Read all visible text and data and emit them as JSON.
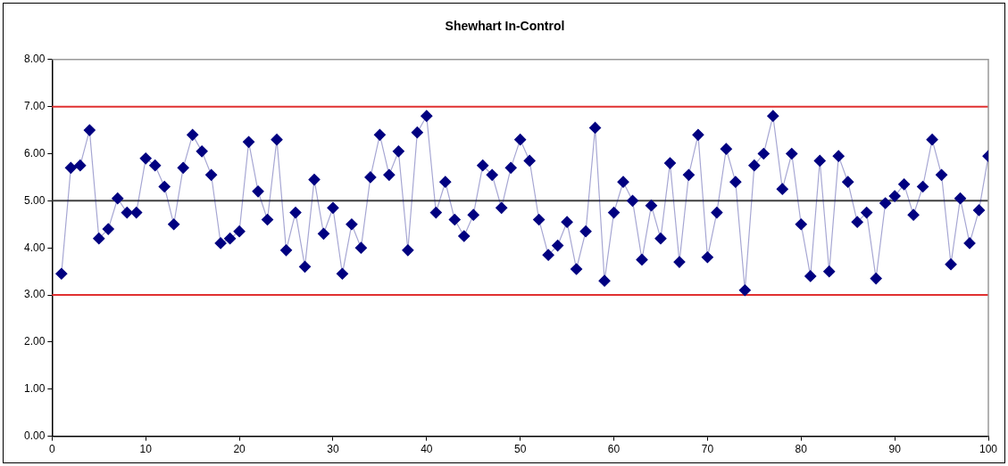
{
  "chart_data": {
    "type": "line",
    "title": "Shewhart In-Control",
    "x": [
      1,
      2,
      3,
      4,
      5,
      6,
      7,
      8,
      9,
      10,
      11,
      12,
      13,
      14,
      15,
      16,
      17,
      18,
      19,
      20,
      21,
      22,
      23,
      24,
      25,
      26,
      27,
      28,
      29,
      30,
      31,
      32,
      33,
      34,
      35,
      36,
      37,
      38,
      39,
      40,
      41,
      42,
      43,
      44,
      45,
      46,
      47,
      48,
      49,
      50,
      51,
      52,
      53,
      54,
      55,
      56,
      57,
      58,
      59,
      60,
      61,
      62,
      63,
      64,
      65,
      66,
      67,
      68,
      69,
      70,
      71,
      72,
      73,
      74,
      75,
      76,
      77,
      78,
      79,
      80,
      81,
      82,
      83,
      84,
      85,
      86,
      87,
      88,
      89,
      90,
      91,
      92,
      93,
      94,
      95,
      96,
      97,
      98,
      99,
      100
    ],
    "series": [
      {
        "color": "#000080",
        "values": [
          3.45,
          5.7,
          5.75,
          6.5,
          4.2,
          4.4,
          5.05,
          4.75,
          4.75,
          5.9,
          5.75,
          5.3,
          4.5,
          5.7,
          6.4,
          6.05,
          5.55,
          4.1,
          4.2,
          4.35,
          6.25,
          5.2,
          4.6,
          6.3,
          3.95,
          4.75,
          3.6,
          5.45,
          4.3,
          4.85,
          3.45,
          4.5,
          4.0,
          5.5,
          6.4,
          5.55,
          6.05,
          3.95,
          6.45,
          6.8,
          4.75,
          5.4,
          4.6,
          4.25,
          4.7,
          5.75,
          5.55,
          4.85,
          5.7,
          6.3,
          5.85,
          4.6,
          3.85,
          4.05,
          4.55,
          3.55,
          4.35,
          6.55,
          3.3,
          4.75,
          5.4,
          5.0,
          3.75,
          4.9,
          4.2,
          5.8,
          3.7,
          5.55,
          6.4,
          3.8,
          4.75,
          6.1,
          5.4,
          3.1,
          5.75,
          6.0,
          6.8,
          5.25,
          6.0,
          4.5,
          3.4,
          5.85,
          3.5,
          5.95,
          5.4,
          4.55,
          4.75,
          3.35,
          4.95,
          5.1,
          5.35,
          4.7,
          5.3,
          6.3,
          5.55,
          3.65,
          5.05,
          4.1,
          4.8,
          5.95
        ]
      }
    ],
    "xlim": [
      0,
      100
    ],
    "xticks": [
      0,
      10,
      20,
      30,
      40,
      50,
      60,
      70,
      80,
      90,
      100
    ],
    "ylim": [
      0,
      8
    ],
    "yticks": [
      {
        "value": 0,
        "label": "0.00"
      },
      {
        "value": 1,
        "label": "1.00"
      },
      {
        "value": 2,
        "label": "2.00"
      },
      {
        "value": 3,
        "label": "3.00"
      },
      {
        "value": 4,
        "label": "4.00"
      },
      {
        "value": 5,
        "label": "5.00"
      },
      {
        "value": 6,
        "label": "6.00"
      },
      {
        "value": 7,
        "label": "7.00"
      },
      {
        "value": 8,
        "label": "8.00"
      }
    ],
    "ref_lines": [
      {
        "axis": "y",
        "value": 7,
        "color": "#e03030"
      },
      {
        "axis": "y",
        "value": 5,
        "color": "#404040"
      },
      {
        "axis": "y",
        "value": 3,
        "color": "#e03030"
      }
    ],
    "marker": "diamond",
    "grid": false,
    "legend": false
  }
}
